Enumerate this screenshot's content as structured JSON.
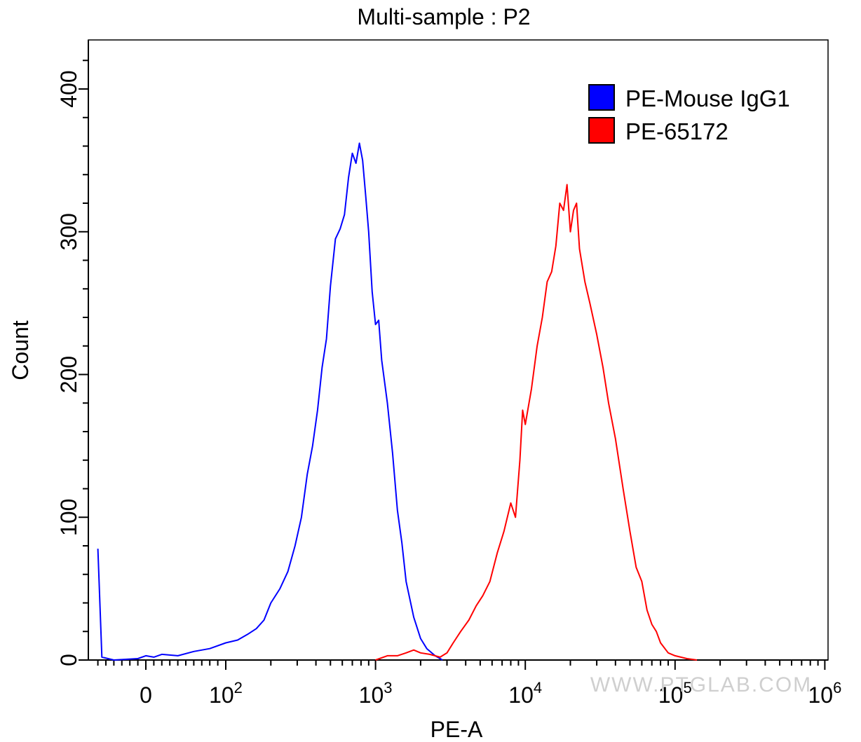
{
  "chart_data": {
    "type": "line",
    "title": "Multi-sample : P2",
    "xlabel": "PE-A",
    "ylabel": "Count",
    "x_scale": "biexponential (log above 10^2)",
    "ylim": [
      0,
      420
    ],
    "y_ticks": [
      "0",
      "100",
      "200",
      "300",
      "400"
    ],
    "x_ticks": [
      {
        "base": "0",
        "exp": ""
      },
      {
        "base": "10",
        "exp": "2"
      },
      {
        "base": "10",
        "exp": "3"
      },
      {
        "base": "10",
        "exp": "4"
      },
      {
        "base": "10",
        "exp": "5"
      },
      {
        "base": "10",
        "exp": "6"
      }
    ],
    "legend_position": "top-right",
    "grid": false,
    "series": [
      {
        "name": "PE-Mouse IgG1",
        "color": "#0000ff",
        "points": [
          [
            -60,
            78
          ],
          [
            -55,
            2
          ],
          [
            -40,
            0
          ],
          [
            -10,
            1
          ],
          [
            0,
            3
          ],
          [
            10,
            2
          ],
          [
            20,
            4
          ],
          [
            40,
            3
          ],
          [
            60,
            6
          ],
          [
            80,
            8
          ],
          [
            100,
            12
          ],
          [
            120,
            14
          ],
          [
            140,
            18
          ],
          [
            160,
            22
          ],
          [
            180,
            28
          ],
          [
            200,
            40
          ],
          [
            230,
            50
          ],
          [
            260,
            62
          ],
          [
            290,
            80
          ],
          [
            320,
            100
          ],
          [
            350,
            130
          ],
          [
            380,
            150
          ],
          [
            410,
            175
          ],
          [
            440,
            205
          ],
          [
            470,
            225
          ],
          [
            500,
            262
          ],
          [
            540,
            295
          ],
          [
            580,
            302
          ],
          [
            620,
            312
          ],
          [
            660,
            338
          ],
          [
            700,
            355
          ],
          [
            740,
            348
          ],
          [
            780,
            362
          ],
          [
            820,
            350
          ],
          [
            860,
            325
          ],
          [
            900,
            300
          ],
          [
            950,
            258
          ],
          [
            1000,
            235
          ],
          [
            1050,
            238
          ],
          [
            1100,
            210
          ],
          [
            1200,
            180
          ],
          [
            1300,
            145
          ],
          [
            1400,
            105
          ],
          [
            1500,
            82
          ],
          [
            1600,
            55
          ],
          [
            1800,
            30
          ],
          [
            2000,
            15
          ],
          [
            2200,
            8
          ],
          [
            2500,
            3
          ],
          [
            2800,
            0
          ]
        ]
      },
      {
        "name": "PE-65172",
        "color": "#ff0000",
        "points": [
          [
            1000,
            0
          ],
          [
            1200,
            3
          ],
          [
            1400,
            3
          ],
          [
            1600,
            5
          ],
          [
            1800,
            7
          ],
          [
            2000,
            5
          ],
          [
            2300,
            4
          ],
          [
            2700,
            2
          ],
          [
            3000,
            5
          ],
          [
            3300,
            12
          ],
          [
            3700,
            20
          ],
          [
            4200,
            28
          ],
          [
            4700,
            38
          ],
          [
            5200,
            45
          ],
          [
            5800,
            55
          ],
          [
            6500,
            75
          ],
          [
            7200,
            90
          ],
          [
            8000,
            110
          ],
          [
            8600,
            100
          ],
          [
            9200,
            140
          ],
          [
            9600,
            175
          ],
          [
            10000,
            165
          ],
          [
            11000,
            190
          ],
          [
            12000,
            220
          ],
          [
            13000,
            240
          ],
          [
            14000,
            265
          ],
          [
            15000,
            272
          ],
          [
            16000,
            290
          ],
          [
            17000,
            320
          ],
          [
            18000,
            315
          ],
          [
            19000,
            333
          ],
          [
            20000,
            300
          ],
          [
            21000,
            315
          ],
          [
            22000,
            320
          ],
          [
            23000,
            288
          ],
          [
            25000,
            265
          ],
          [
            27000,
            250
          ],
          [
            30000,
            228
          ],
          [
            33000,
            205
          ],
          [
            36000,
            180
          ],
          [
            40000,
            155
          ],
          [
            45000,
            120
          ],
          [
            50000,
            90
          ],
          [
            55000,
            65
          ],
          [
            60000,
            55
          ],
          [
            65000,
            35
          ],
          [
            70000,
            25
          ],
          [
            75000,
            20
          ],
          [
            80000,
            12
          ],
          [
            90000,
            5
          ],
          [
            100000,
            3
          ],
          [
            120000,
            1
          ],
          [
            140000,
            0
          ]
        ]
      }
    ]
  },
  "watermark": "WWW.PTGLAB.COM"
}
